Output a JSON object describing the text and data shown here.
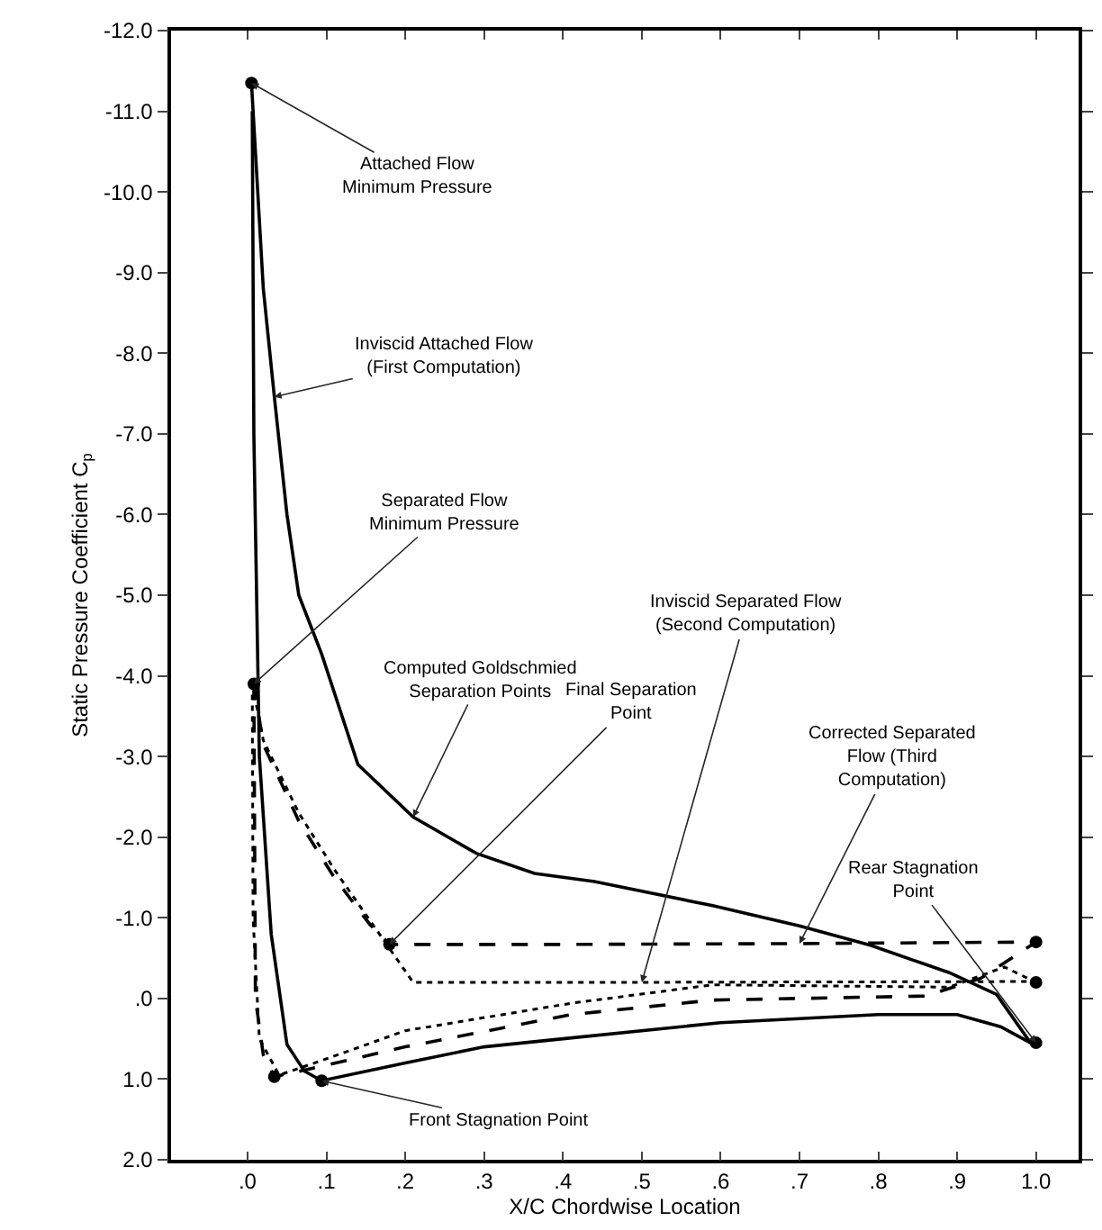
{
  "chart_data": {
    "type": "line",
    "xlabel": "X/C Chordwise Location",
    "ylabel": "Static Pressure Coefficient C$_{p}$",
    "xlim": [
      -0.097,
      1.054
    ],
    "ylim": [
      2.0,
      -12.0
    ],
    "xticks": [
      {
        "value": 0,
        "label": ".0"
      },
      {
        "value": 0.1,
        "label": ".1"
      },
      {
        "value": 0.2,
        "label": ".2"
      },
      {
        "value": 0.3,
        "label": ".3"
      },
      {
        "value": 0.4,
        "label": ".4"
      },
      {
        "value": 0.5,
        "label": ".5"
      },
      {
        "value": 0.6,
        "label": ".6"
      },
      {
        "value": 0.7,
        "label": ".7"
      },
      {
        "value": 0.8,
        "label": ".8"
      },
      {
        "value": 0.9,
        "label": ".9"
      },
      {
        "value": 1.0,
        "label": "1.0"
      }
    ],
    "yticks": [
      {
        "value": -12,
        "label": "-12.0"
      },
      {
        "value": -11,
        "label": "-11.0"
      },
      {
        "value": -10,
        "label": "-10.0"
      },
      {
        "value": -9,
        "label": "-9.0"
      },
      {
        "value": -8,
        "label": "-8.0"
      },
      {
        "value": -7,
        "label": "-7.0"
      },
      {
        "value": -6,
        "label": "-6.0"
      },
      {
        "value": -5,
        "label": "-5.0"
      },
      {
        "value": -4,
        "label": "-4.0"
      },
      {
        "value": -3,
        "label": "-3.0"
      },
      {
        "value": -2,
        "label": "-2.0"
      },
      {
        "value": -1,
        "label": "-1.0"
      },
      {
        "value": 0,
        "label": ".0"
      },
      {
        "value": 1,
        "label": "1.0"
      },
      {
        "value": 2,
        "label": "2.0"
      }
    ],
    "marker": "none",
    "series": [
      {
        "color": "#000000",
        "line_style": "solid",
        "x": [
          0.005,
          0.01,
          0.02,
          0.034,
          0.05,
          0.065,
          0.094,
          0.14,
          0.21,
          0.29,
          0.364,
          0.44,
          0.59,
          0.7,
          0.79,
          0.89,
          0.95,
          0.993
        ],
        "values": [
          -11.35,
          -10.5,
          -8.8,
          -7.46,
          -6.0,
          -5.0,
          -4.27,
          -2.9,
          -2.25,
          -1.8,
          -1.55,
          -1.45,
          -1.15,
          -0.9,
          -0.66,
          -0.32,
          -0.05,
          0.55
        ]
      },
      {
        "color": "#000000",
        "line_style": "solid",
        "x": [
          0.006,
          0.008,
          0.015,
          0.03,
          0.05,
          0.072,
          0.094,
          0.2,
          0.3,
          0.4,
          0.6,
          0.8,
          0.9,
          0.955,
          0.993
        ],
        "values": [
          -11.0,
          -7.0,
          -3.0,
          -0.8,
          0.57,
          0.9,
          1.02,
          0.8,
          0.6,
          0.5,
          0.3,
          0.2,
          0.2,
          0.35,
          0.55
        ]
      },
      {
        "color": "#000000",
        "line_style": "dashed",
        "x": [
          0.008,
          0.02,
          0.065,
          0.11,
          0.155,
          0.18,
          0.4,
          0.7,
          1.0
        ],
        "values": [
          -3.9,
          -3.15,
          -2.2,
          -1.5,
          -0.92,
          -0.67,
          -0.67,
          -0.68,
          -0.7
        ]
      },
      {
        "color": "#000000",
        "line_style": "dashed",
        "x": [
          0.008,
          0.009,
          0.01,
          0.02,
          0.034,
          0.094,
          0.2,
          0.41,
          0.59,
          0.86,
          0.93,
          1.0
        ],
        "values": [
          -3.9,
          -2.0,
          0.0,
          0.7,
          0.97,
          0.84,
          0.6,
          0.2,
          0.02,
          -0.03,
          -0.25,
          -0.7
        ]
      },
      {
        "color": "#000000",
        "line_style": "dotted",
        "x": [
          0.006,
          0.02,
          0.065,
          0.11,
          0.16,
          0.21,
          0.5,
          1.0
        ],
        "values": [
          -3.9,
          -3.2,
          -2.3,
          -1.6,
          -0.9,
          -0.2,
          -0.2,
          -0.21
        ]
      },
      {
        "color": "#000000",
        "line_style": "dotted",
        "x": [
          0.006,
          0.007,
          0.015,
          0.04,
          0.094,
          0.2,
          0.41,
          0.59,
          0.89,
          0.96,
          1.0
        ],
        "values": [
          -3.9,
          -1.0,
          0.5,
          0.95,
          0.77,
          0.4,
          0.06,
          -0.17,
          -0.14,
          -0.39,
          -0.2
        ]
      },
      {
        "type": "scatter",
        "marker": "circle",
        "color": "#000000",
        "x": [
          0.005,
          0.008,
          0.18,
          0.034,
          0.094,
          1.0,
          1.0,
          1.0
        ],
        "values": [
          -11.35,
          -3.9,
          -0.67,
          0.97,
          1.02,
          -0.7,
          -0.2,
          0.55
        ]
      }
    ],
    "annotations": [
      {
        "text": "Attached Flow\nMinimum Pressure",
        "x": 0.005,
        "y": -11.35
      },
      {
        "text": "Inviscid Attached Flow\n(First Computation)",
        "x": 0.034,
        "y": -7.46
      },
      {
        "text": "Separated Flow\nMinimum Pressure",
        "x": 0.008,
        "y": -3.9
      },
      {
        "text": "Computed Goldschmied\nSeparation Points",
        "x": 0.21,
        "y": -2.25
      },
      {
        "text": "Final Separation\nPoint",
        "x": 0.18,
        "y": -0.67
      },
      {
        "text": "Inviscid Separated Flow\n(Second Computation)",
        "x": 0.5,
        "y": -0.2
      },
      {
        "text": "Corrected Separated\nFlow (Third\nComputation)",
        "x": 0.7,
        "y": -0.68
      },
      {
        "text": "Rear Stagnation\nPoint",
        "x": 1.0,
        "y": 0.55
      },
      {
        "text": "Front Stagnation Point",
        "x": 0.094,
        "y": 1.02
      }
    ]
  }
}
